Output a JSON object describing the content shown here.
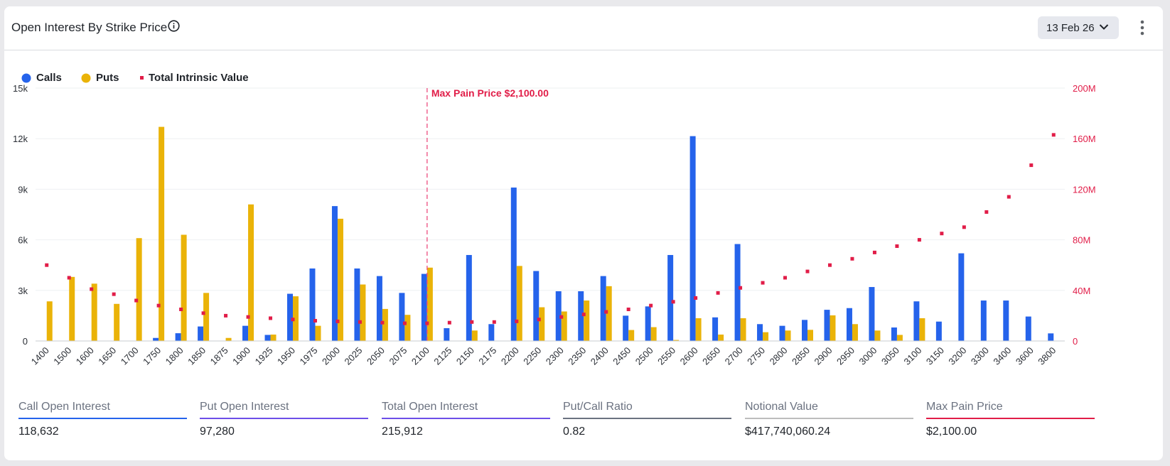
{
  "header": {
    "title": "Open Interest By Strike Price",
    "date_label": "13 Feb 26"
  },
  "legend": [
    {
      "label": "Calls",
      "color": "#2563eb",
      "marker": "circle"
    },
    {
      "label": "Puts",
      "color": "#eab308",
      "marker": "circle"
    },
    {
      "label": "Total Intrinsic Value",
      "color": "#e11d48",
      "marker": "square"
    }
  ],
  "stats": [
    {
      "label": "Call Open Interest",
      "value": "118,632",
      "color": "#2563eb"
    },
    {
      "label": "Put Open Interest",
      "value": "97,280",
      "color": "#6d4ee8"
    },
    {
      "label": "Total Open Interest",
      "value": "215,912",
      "color": "#6d4ee8"
    },
    {
      "label": "Put/Call Ratio",
      "value": "0.82",
      "color": "#6b7280"
    },
    {
      "label": "Notional Value",
      "value": "$417,740,060.24",
      "color": "#bdbdbd"
    },
    {
      "label": "Max Pain Price",
      "value": "$2,100.00",
      "color": "#e11d48"
    }
  ],
  "chart_data": {
    "type": "bar",
    "categories": [
      "1400",
      "1500",
      "1600",
      "1650",
      "1700",
      "1750",
      "1800",
      "1850",
      "1875",
      "1900",
      "1925",
      "1950",
      "1975",
      "2000",
      "2025",
      "2050",
      "2075",
      "2100",
      "2125",
      "2150",
      "2175",
      "2200",
      "2250",
      "2300",
      "2350",
      "2400",
      "2450",
      "2500",
      "2550",
      "2600",
      "2650",
      "2700",
      "2750",
      "2800",
      "2850",
      "2900",
      "2950",
      "3000",
      "3050",
      "3100",
      "3150",
      "3200",
      "3300",
      "3400",
      "3600",
      "3800"
    ],
    "series": [
      {
        "name": "Calls",
        "axis": "left",
        "color": "#2563eb",
        "values": [
          0,
          0,
          0,
          0,
          0,
          180,
          460,
          860,
          0,
          900,
          360,
          2800,
          4300,
          8000,
          4300,
          3850,
          2850,
          3980,
          760,
          5100,
          1000,
          9100,
          4150,
          2950,
          2950,
          3850,
          1500,
          2050,
          5100,
          12150,
          1400,
          5750,
          1000,
          900,
          1250,
          1850,
          1950,
          3200,
          800,
          2350,
          1150,
          5200,
          2400,
          2400,
          1450,
          450
        ]
      },
      {
        "name": "Puts",
        "axis": "left",
        "color": "#eab308",
        "values": [
          2350,
          3800,
          3400,
          2200,
          6100,
          12700,
          6300,
          2850,
          180,
          8100,
          380,
          2650,
          900,
          7250,
          3350,
          1900,
          1550,
          4350,
          0,
          620,
          0,
          4450,
          2000,
          1750,
          2400,
          3250,
          650,
          820,
          60,
          1350,
          380,
          1350,
          520,
          620,
          660,
          1520,
          1000,
          620,
          360,
          1350,
          0,
          0,
          0,
          0,
          0,
          0
        ]
      },
      {
        "name": "Total Intrinsic Value",
        "axis": "right",
        "type": "scatter",
        "color": "#e11d48",
        "values": [
          60,
          50,
          41,
          37,
          32,
          28,
          25,
          22,
          20,
          19,
          18,
          17,
          16,
          15.5,
          15,
          14.5,
          14,
          14,
          14.5,
          15,
          15,
          15.5,
          17,
          19,
          21,
          23,
          25,
          28,
          31,
          34,
          38,
          42,
          46,
          50,
          55,
          60,
          65,
          70,
          75,
          80,
          85,
          90,
          102,
          114,
          139,
          163
        ]
      }
    ],
    "ylim_left": [
      0,
      15000
    ],
    "yticks_left": [
      "0",
      "3k",
      "6k",
      "9k",
      "12k",
      "15k"
    ],
    "ylim_right": [
      0,
      200
    ],
    "yticks_right": [
      "0",
      "40M",
      "80M",
      "120M",
      "160M",
      "200M"
    ],
    "annotation": {
      "label": "Max Pain Price $2,100.00",
      "category": "2100",
      "color": "#e11d48"
    },
    "grid": true,
    "legend_position": "top-left"
  }
}
